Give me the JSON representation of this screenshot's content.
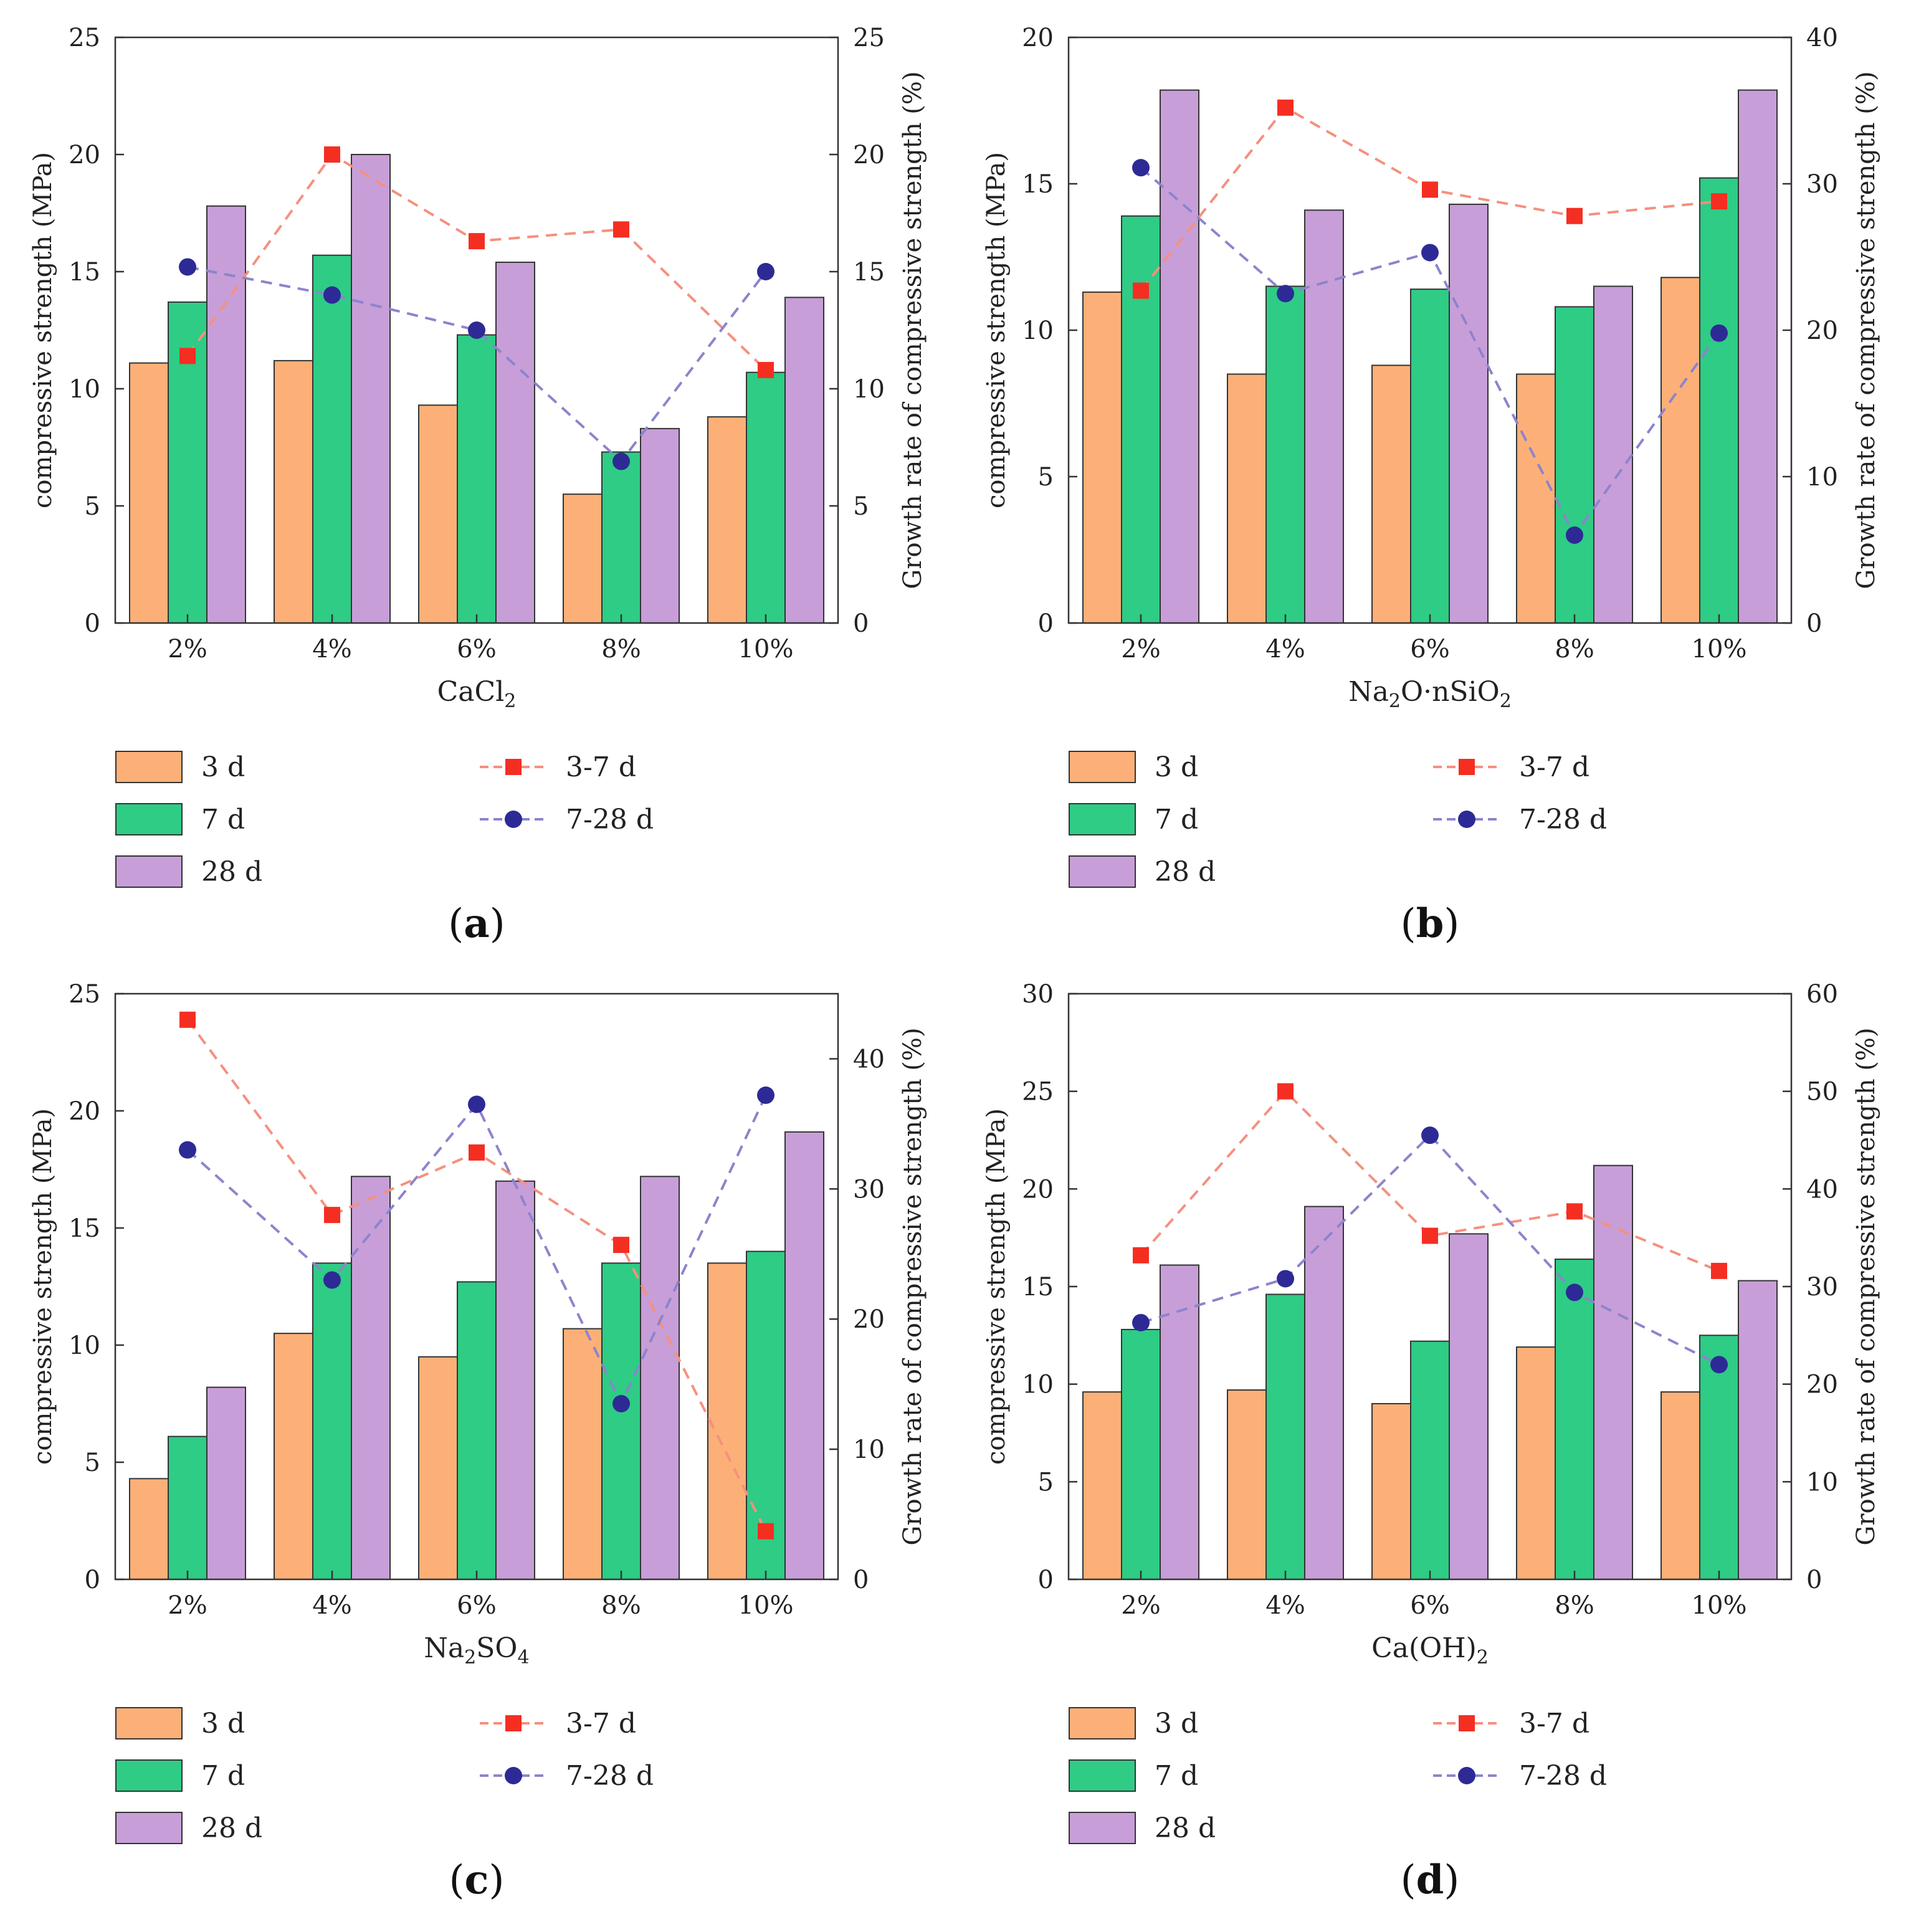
{
  "colors": {
    "d3": "#fcb078",
    "d7": "#2ecc85",
    "d28": "#c89ed8",
    "r37": "#f52e22",
    "r728": "#2d2a96",
    "r37_line": "#f5907e",
    "r728_line": "#8b84cc"
  },
  "legend": {
    "bar3": "3 d",
    "bar7": "7 d",
    "bar28": "28 d",
    "line37": "3-7 d",
    "line728": "7-28 d"
  },
  "chart_data": [
    {
      "id": "a",
      "type": "bar",
      "caption": "a",
      "xlabel_main": "CaCl",
      "xlabel_parts": [
        {
          "t": "CaCl",
          "sub": false
        },
        {
          "t": "2",
          "sub": true
        }
      ],
      "ylabel": "compressive strength (MPa)",
      "y2label": "Growth rate of compressive strength (%)",
      "categories": [
        "2%",
        "4%",
        "6%",
        "8%",
        "10%"
      ],
      "ylim": [
        0,
        25
      ],
      "yticks": [
        0,
        5,
        10,
        15,
        20,
        25
      ],
      "y2lim": [
        0,
        25
      ],
      "y2ticks": [
        0,
        5,
        10,
        15,
        20,
        25
      ],
      "series": [
        {
          "name": "3 d",
          "values": [
            11.1,
            11.2,
            9.3,
            5.5,
            8.8
          ]
        },
        {
          "name": "7 d",
          "values": [
            13.7,
            15.7,
            12.3,
            7.3,
            10.7
          ]
        },
        {
          "name": "28 d",
          "values": [
            17.8,
            20.0,
            15.4,
            8.3,
            13.9
          ]
        }
      ],
      "line_series": [
        {
          "name": "3-7 d",
          "values": [
            11.4,
            20.0,
            16.3,
            16.8,
            10.8
          ]
        },
        {
          "name": "7-28 d",
          "values": [
            15.2,
            14.0,
            12.5,
            6.9,
            15.0
          ]
        }
      ]
    },
    {
      "id": "b",
      "type": "bar",
      "caption": "b",
      "xlabel_main": "Na2O·nSiO2",
      "xlabel_parts": [
        {
          "t": "Na",
          "sub": false
        },
        {
          "t": "2",
          "sub": true
        },
        {
          "t": "O·nSiO",
          "sub": false
        },
        {
          "t": "2",
          "sub": true
        }
      ],
      "ylabel": "compressive strength (MPa)",
      "y2label": "Growth rate of compressive strength (%)",
      "categories": [
        "2%",
        "4%",
        "6%",
        "8%",
        "10%"
      ],
      "ylim": [
        0,
        20
      ],
      "yticks": [
        0,
        5,
        10,
        15,
        20
      ],
      "y2lim": [
        0,
        40
      ],
      "y2ticks": [
        0,
        10,
        20,
        30,
        40
      ],
      "series": [
        {
          "name": "3 d",
          "values": [
            11.3,
            8.5,
            8.8,
            8.5,
            11.8
          ]
        },
        {
          "name": "7 d",
          "values": [
            13.9,
            11.5,
            11.4,
            10.8,
            15.2
          ]
        },
        {
          "name": "28 d",
          "values": [
            18.2,
            14.1,
            14.3,
            11.5,
            18.2
          ]
        }
      ],
      "line_series": [
        {
          "name": "3-7 d",
          "values": [
            22.7,
            35.2,
            29.6,
            27.8,
            28.8
          ]
        },
        {
          "name": "7-28 d",
          "values": [
            31.1,
            22.5,
            25.3,
            6.0,
            19.8
          ]
        }
      ]
    },
    {
      "id": "c",
      "type": "bar",
      "caption": "c",
      "xlabel_main": "Na2SO4",
      "xlabel_parts": [
        {
          "t": "Na",
          "sub": false
        },
        {
          "t": "2",
          "sub": true
        },
        {
          "t": "SO",
          "sub": false
        },
        {
          "t": "4",
          "sub": true
        }
      ],
      "ylabel": "compressive strength (MPa)",
      "y2label": "Growth rate of compressive strength (%)",
      "categories": [
        "2%",
        "4%",
        "6%",
        "8%",
        "10%"
      ],
      "ylim": [
        0,
        25
      ],
      "yticks": [
        0,
        5,
        10,
        15,
        20,
        25
      ],
      "y2lim": [
        0,
        45
      ],
      "y2ticks": [
        0,
        10,
        20,
        30,
        40
      ],
      "series": [
        {
          "name": "3 d",
          "values": [
            4.3,
            10.5,
            9.5,
            10.7,
            13.5
          ]
        },
        {
          "name": "7 d",
          "values": [
            6.1,
            13.5,
            12.7,
            13.5,
            14.0
          ]
        },
        {
          "name": "28 d",
          "values": [
            8.2,
            17.2,
            17.0,
            17.2,
            19.1
          ]
        }
      ],
      "line_series": [
        {
          "name": "3-7 d",
          "values": [
            43.0,
            28.0,
            32.8,
            25.7,
            3.7
          ]
        },
        {
          "name": "7-28 d",
          "values": [
            33.0,
            23.0,
            36.5,
            13.5,
            37.2
          ]
        }
      ]
    },
    {
      "id": "d",
      "type": "bar",
      "caption": "d",
      "xlabel_main": "Ca(OH)2",
      "xlabel_parts": [
        {
          "t": "Ca(OH)",
          "sub": false
        },
        {
          "t": "2",
          "sub": true
        }
      ],
      "ylabel": "compressive strength (MPa)",
      "y2label": "Growth rate of compressive strength (%)",
      "categories": [
        "2%",
        "4%",
        "6%",
        "8%",
        "10%"
      ],
      "ylim": [
        0,
        30
      ],
      "yticks": [
        0,
        5,
        10,
        15,
        20,
        25,
        30
      ],
      "y2lim": [
        0,
        60
      ],
      "y2ticks": [
        0,
        10,
        20,
        30,
        40,
        50,
        60
      ],
      "series": [
        {
          "name": "3 d",
          "values": [
            9.6,
            9.7,
            9.0,
            11.9,
            9.6
          ]
        },
        {
          "name": "7 d",
          "values": [
            12.8,
            14.6,
            12.2,
            16.4,
            12.5
          ]
        },
        {
          "name": "28 d",
          "values": [
            16.1,
            19.1,
            17.7,
            21.2,
            15.3
          ]
        }
      ],
      "line_series": [
        {
          "name": "3-7 d",
          "values": [
            33.2,
            50.0,
            35.2,
            37.7,
            31.6
          ]
        },
        {
          "name": "7-28 d",
          "values": [
            26.3,
            30.8,
            45.5,
            29.4,
            22.0
          ]
        }
      ]
    }
  ]
}
